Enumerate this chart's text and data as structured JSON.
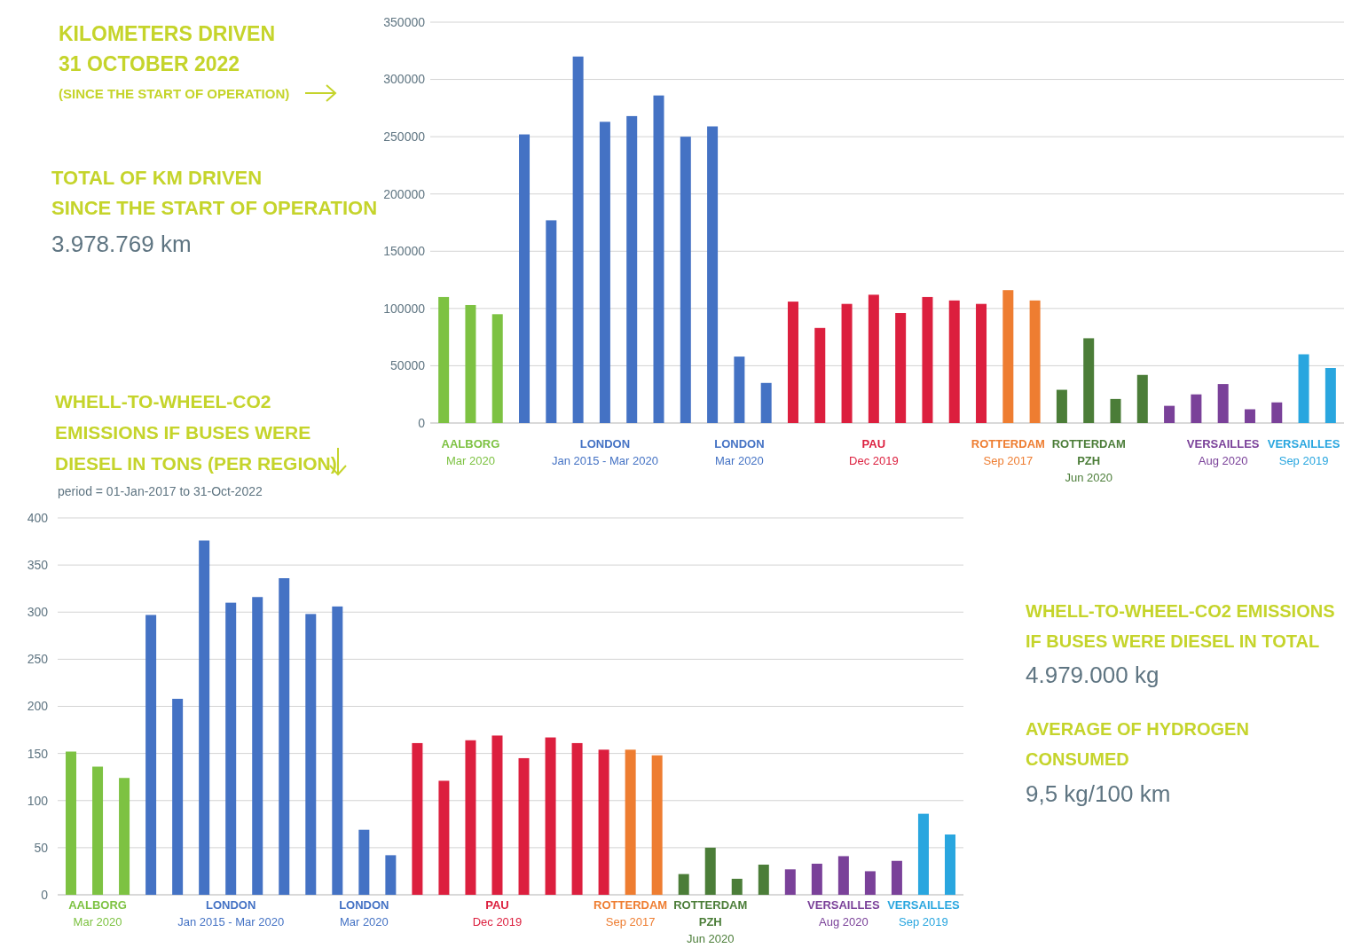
{
  "chart_data": [
    {
      "type": "bar",
      "title": "KILOMETERS DRIVEN\n31 OCTOBER 2022",
      "annotations": [
        "(SINCE THE START OF OPERATION)",
        "TOTAL OF KM DRIVEN\nSINCE THE START OF OPERATION",
        "3.978.769 km"
      ],
      "categories": [
        null,
        "AALBORG\nMar 2020",
        null,
        null,
        null,
        null,
        "LONDON\nJan 2015 - Mar 2020",
        null,
        null,
        null,
        null,
        "LONDON\nMar 2020",
        null,
        null,
        null,
        null,
        "PAU\nDec 2019",
        null,
        null,
        null,
        null,
        "ROTTERDAM\nSep 2017",
        null,
        null,
        "ROTTERDAM\nPZH\nJun 2020",
        null,
        null,
        null,
        null,
        "VERSAILLES\nAug 2020",
        null,
        null,
        "VERSAILLES\nSep 2019",
        null
      ],
      "values": [
        110000,
        103000,
        95000,
        252000,
        177000,
        320000,
        263000,
        268000,
        286000,
        250000,
        259000,
        58000,
        35000,
        106000,
        83000,
        104000,
        112000,
        96000,
        110000,
        107000,
        104000,
        116000,
        107000,
        29000,
        74000,
        21000,
        42000,
        15000,
        25000,
        34000,
        12000,
        18000,
        60000,
        48000
      ],
      "colors": [
        "#7dc242",
        "#7dc242",
        "#7dc242",
        "#4472c4",
        "#4472c4",
        "#4472c4",
        "#4472c4",
        "#4472c4",
        "#4472c4",
        "#4472c4",
        "#4472c4",
        "#4472c4",
        "#4472c4",
        "#dc1f3e",
        "#dc1f3e",
        "#dc1f3e",
        "#dc1f3e",
        "#dc1f3e",
        "#dc1f3e",
        "#dc1f3e",
        "#dc1f3e",
        "#ee7d31",
        "#ee7d31",
        "#4b7d38",
        "#4b7d38",
        "#4b7d38",
        "#4b7d38",
        "#7a4199",
        "#7a4199",
        "#7a4199",
        "#7a4199",
        "#7a4199",
        "#29a6df",
        "#29a6df"
      ],
      "ylim": [
        0,
        350000
      ],
      "yticks": [
        0,
        50000,
        100000,
        150000,
        200000,
        250000,
        300000,
        350000
      ],
      "grid": "y"
    },
    {
      "type": "bar",
      "title": "WHELL-TO-WHEEL-CO2\nEMISSIONS IF BUSES WERE\nDIESEL IN TONS (PER REGION)",
      "subtitle": "period = 01-Jan-2017 to 31-Oct-2022",
      "annotations": [
        "WHELL-TO-WHEEL-CO2 EMISSIONS\nIF BUSES WERE DIESEL IN TOTAL",
        "4.979.000 kg",
        "AVERAGE OF HYDROGEN\nCONSUMED",
        "9,5 kg/100 km"
      ],
      "categories": [
        null,
        "AALBORG\nMar 2020",
        null,
        null,
        null,
        null,
        "LONDON\nJan 2015 - Mar 2020",
        null,
        null,
        null,
        null,
        "LONDON\nMar 2020",
        null,
        null,
        null,
        null,
        "PAU\nDec 2019",
        null,
        null,
        null,
        null,
        "ROTTERDAM\nSep 2017",
        null,
        null,
        "ROTTERDAM\nPZH\nJun 2020",
        null,
        null,
        null,
        null,
        "VERSAILLES\nAug 2020",
        null,
        null,
        "VERSAILLES\nSep 2019",
        null
      ],
      "values": [
        152,
        136,
        124,
        297,
        208,
        376,
        310,
        316,
        336,
        298,
        306,
        69,
        42,
        161,
        121,
        164,
        169,
        145,
        167,
        161,
        154,
        154,
        148,
        22,
        50,
        17,
        32,
        27,
        33,
        41,
        25,
        36,
        86,
        64
      ],
      "colors": [
        "#7dc242",
        "#7dc242",
        "#7dc242",
        "#4472c4",
        "#4472c4",
        "#4472c4",
        "#4472c4",
        "#4472c4",
        "#4472c4",
        "#4472c4",
        "#4472c4",
        "#4472c4",
        "#4472c4",
        "#dc1f3e",
        "#dc1f3e",
        "#dc1f3e",
        "#dc1f3e",
        "#dc1f3e",
        "#dc1f3e",
        "#dc1f3e",
        "#dc1f3e",
        "#ee7d31",
        "#ee7d31",
        "#4b7d38",
        "#4b7d38",
        "#4b7d38",
        "#4b7d38",
        "#7a4199",
        "#7a4199",
        "#7a4199",
        "#7a4199",
        "#7a4199",
        "#29a6df",
        "#29a6df"
      ],
      "ylim": [
        0,
        400
      ],
      "yticks": [
        0,
        50,
        100,
        150,
        200,
        250,
        300,
        350,
        400
      ],
      "grid": "y"
    }
  ]
}
